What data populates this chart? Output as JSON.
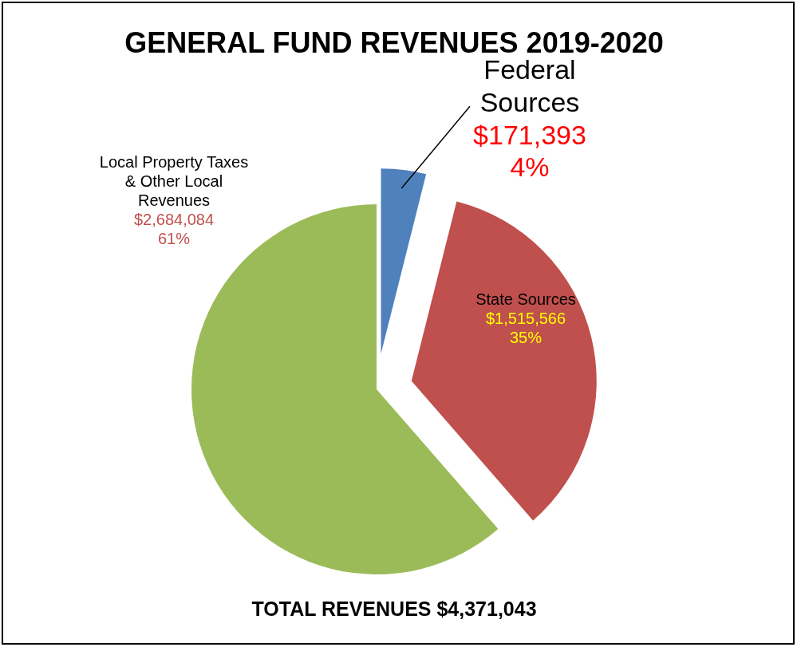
{
  "chart_data": {
    "type": "pie",
    "title": "GENERAL FUND REVENUES 2019-2020",
    "categories": [
      "Federal Sources",
      "State Sources",
      "Local Property Taxes & Other Local Revenues"
    ],
    "values": [
      171393,
      1515566,
      2684084
    ],
    "colors": [
      "#4f81bd",
      "#c0504d",
      "#9bbb59"
    ],
    "value_labels": [
      "$171,393\n4%",
      "$1,515,566\n35%",
      "$2,684,084\n61%"
    ],
    "annotations": [
      "TOTAL REVENUES $4,371,043"
    ],
    "legend": false
  }
}
